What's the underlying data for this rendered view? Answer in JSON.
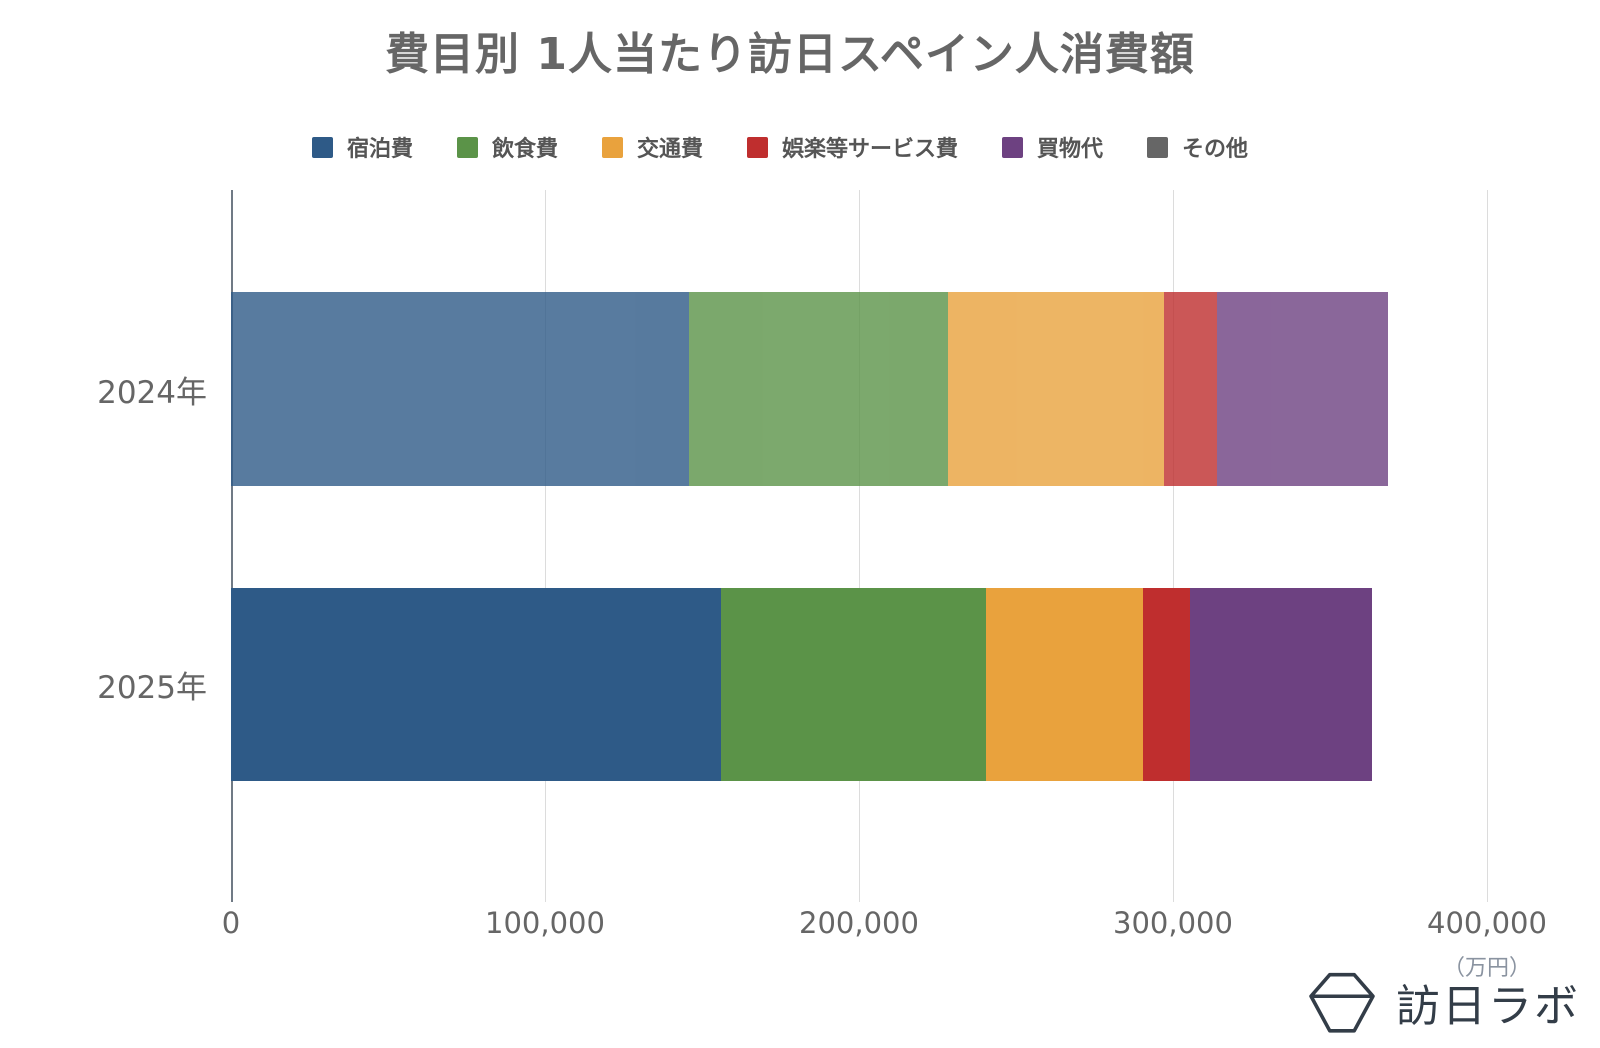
{
  "title": "費目別 1人当たり訪日スペイン人消費額",
  "footer": {
    "logo_text": "訪日ラボ"
  },
  "chart_data": {
    "type": "bar",
    "orientation": "horizontal",
    "stacked": true,
    "title": "費目別 1人当たり訪日スペイン人消費額",
    "categories": [
      "2024年",
      "2025年"
    ],
    "series": [
      {
        "name": "宿泊費",
        "color": "#2e5a87",
        "values": [
          146000,
          156000
        ]
      },
      {
        "name": "飲食費",
        "color": "#5b9348",
        "values": [
          82500,
          84500
        ]
      },
      {
        "name": "交通費",
        "color": "#e9a23d",
        "values": [
          68500,
          50000
        ]
      },
      {
        "name": "娯楽等サービス費",
        "color": "#bf2e2e",
        "values": [
          17000,
          15000
        ]
      },
      {
        "name": "買物代",
        "color": "#6d4181",
        "values": [
          54500,
          58000
        ]
      },
      {
        "name": "その他",
        "color": "#666666",
        "values": [
          0,
          0
        ]
      }
    ],
    "totals": [
      368500,
      363500
    ],
    "xlim": [
      0,
      400000
    ],
    "x_ticks": [
      "0",
      "100,000",
      "200,000",
      "300,000",
      "400,000"
    ],
    "x_unit": "（万円）",
    "row_opacity": [
      0.8,
      1
    ],
    "grid": true,
    "legend_position": "top"
  }
}
